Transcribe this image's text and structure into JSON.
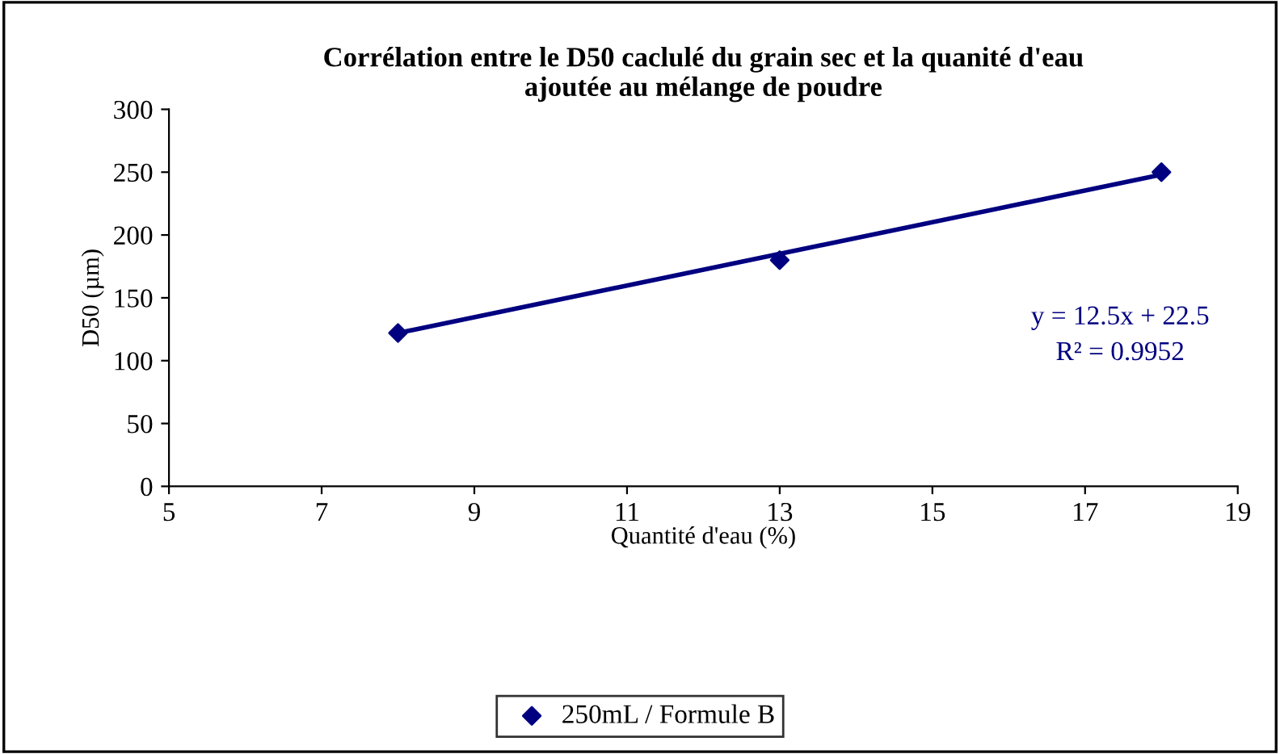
{
  "chart_data": {
    "type": "scatter",
    "title": "Corrélation entre le D50 caclulé du grain sec et la quanité d'eau\najoutée au mélange de poudre",
    "xlabel": "Quantité d'eau (%)",
    "ylabel": "D50 (µm)",
    "xlim": [
      5,
      19
    ],
    "xticks": [
      5,
      7,
      9,
      11,
      13,
      15,
      17,
      19
    ],
    "ylim": [
      0,
      300
    ],
    "yticks": [
      0,
      50,
      100,
      150,
      200,
      250,
      300
    ],
    "grid": false,
    "legend": "bottom",
    "marker": "diamond",
    "series": [
      {
        "name": "250mL / Formule B",
        "color": "#000080",
        "x": [
          8,
          13,
          18
        ],
        "values": [
          122,
          180,
          250
        ]
      },
      {
        "type": "line",
        "color": "#000080",
        "x": [
          8,
          18
        ],
        "values": [
          122,
          248
        ],
        "line_style": "solid",
        "marker": "none"
      }
    ],
    "annotations": [
      "y = 12.5x + 22.5\nR² = 0.9952"
    ]
  }
}
